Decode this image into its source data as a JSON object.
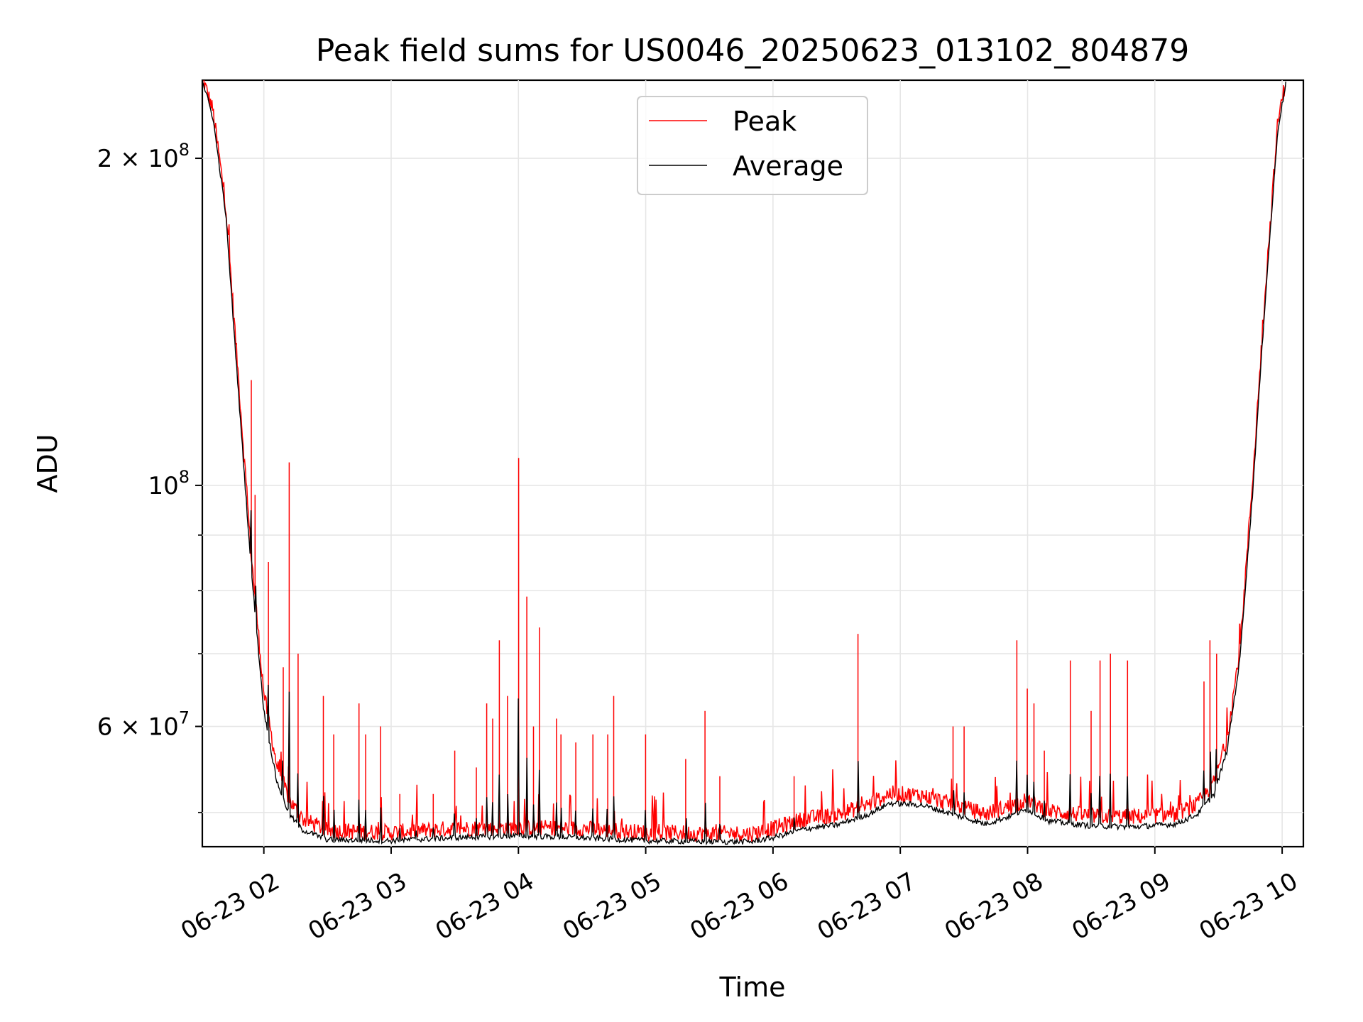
{
  "chart_data": {
    "type": "line",
    "title": "Peak field sums for US0046_20250623_013102_804879",
    "xlabel": "Time",
    "ylabel": "ADU",
    "x_scale": "time",
    "y_scale": "log",
    "xlim": [
      "2025-06-23 01:31",
      "2025-06-23 10:10"
    ],
    "ylim": [
      46500000,
      236000000
    ],
    "x_ticks": [
      {
        "value": "2025-06-23 02:00",
        "label": "06-23 02"
      },
      {
        "value": "2025-06-23 03:00",
        "label": "06-23 03"
      },
      {
        "value": "2025-06-23 04:00",
        "label": "06-23 04"
      },
      {
        "value": "2025-06-23 05:00",
        "label": "06-23 05"
      },
      {
        "value": "2025-06-23 06:00",
        "label": "06-23 06"
      },
      {
        "value": "2025-06-23 07:00",
        "label": "06-23 07"
      },
      {
        "value": "2025-06-23 08:00",
        "label": "06-23 08"
      },
      {
        "value": "2025-06-23 09:00",
        "label": "06-23 09"
      },
      {
        "value": "2025-06-23 10:00",
        "label": "06-23 10"
      }
    ],
    "y_major_ticks": [
      {
        "value": 200000000,
        "mantissa": "2",
        "exponent": "8"
      },
      {
        "value": 100000000,
        "mantissa": "",
        "exponent": "8"
      },
      {
        "value": 60000000,
        "mantissa": "6",
        "exponent": "7"
      }
    ],
    "y_minor_ticks": [
      50000000,
      70000000,
      80000000,
      90000000
    ],
    "grid": true,
    "legend": {
      "position": "top-center"
    },
    "series": [
      {
        "name": "Peak",
        "color": "#ff0000",
        "baseline": [
          [
            "2025-06-23 01:31",
            236000000
          ],
          [
            "2025-06-23 01:36",
            220000000
          ],
          [
            "2025-06-23 01:42",
            180000000
          ],
          [
            "2025-06-23 01:48",
            125000000
          ],
          [
            "2025-06-23 01:54",
            86000000
          ],
          [
            "2025-06-23 02:00",
            64000000
          ],
          [
            "2025-06-23 02:06",
            55000000
          ],
          [
            "2025-06-23 02:12",
            51000000
          ],
          [
            "2025-06-23 02:18",
            49000000
          ],
          [
            "2025-06-23 02:30",
            47800000
          ],
          [
            "2025-06-23 03:00",
            47600000
          ],
          [
            "2025-06-23 03:30",
            48000000
          ],
          [
            "2025-06-23 04:00",
            48100000
          ],
          [
            "2025-06-23 04:30",
            48000000
          ],
          [
            "2025-06-23 05:00",
            47600000
          ],
          [
            "2025-06-23 05:30",
            47500000
          ],
          [
            "2025-06-23 05:50",
            47500000
          ],
          [
            "2025-06-23 06:00",
            48000000
          ],
          [
            "2025-06-23 06:15",
            49000000
          ],
          [
            "2025-06-23 06:30",
            49400000
          ],
          [
            "2025-06-23 06:45",
            50500000
          ],
          [
            "2025-06-23 06:55",
            51700000
          ],
          [
            "2025-06-23 07:10",
            51500000
          ],
          [
            "2025-06-23 07:25",
            50500000
          ],
          [
            "2025-06-23 07:40",
            49500000
          ],
          [
            "2025-06-23 07:50",
            50200000
          ],
          [
            "2025-06-23 08:00",
            51000000
          ],
          [
            "2025-06-23 08:10",
            49800000
          ],
          [
            "2025-06-23 08:30",
            49300000
          ],
          [
            "2025-06-23 08:50",
            49200000
          ],
          [
            "2025-06-23 09:10",
            49500000
          ],
          [
            "2025-06-23 09:20",
            50500000
          ],
          [
            "2025-06-23 09:28",
            53000000
          ],
          [
            "2025-06-23 09:34",
            58000000
          ],
          [
            "2025-06-23 09:40",
            70000000
          ],
          [
            "2025-06-23 09:46",
            100000000
          ],
          [
            "2025-06-23 09:52",
            150000000
          ],
          [
            "2025-06-23 09:58",
            215000000
          ],
          [
            "2025-06-23 10:02",
            236000000
          ]
        ],
        "spikes": [
          [
            "2025-06-23 01:54",
            125000000
          ],
          [
            "2025-06-23 01:56",
            98000000
          ],
          [
            "2025-06-23 02:02",
            85000000
          ],
          [
            "2025-06-23 02:09",
            68000000
          ],
          [
            "2025-06-23 02:12",
            105000000
          ],
          [
            "2025-06-23 02:16",
            70000000
          ],
          [
            "2025-06-23 02:28",
            64000000
          ],
          [
            "2025-06-23 02:33",
            59000000
          ],
          [
            "2025-06-23 02:45",
            63000000
          ],
          [
            "2025-06-23 02:48",
            59000000
          ],
          [
            "2025-06-23 02:55",
            60000000
          ],
          [
            "2025-06-23 03:04",
            52000000
          ],
          [
            "2025-06-23 03:12",
            51000000
          ],
          [
            "2025-06-23 03:20",
            52000000
          ],
          [
            "2025-06-23 03:30",
            57000000
          ],
          [
            "2025-06-23 03:40",
            55000000
          ],
          [
            "2025-06-23 03:45",
            63000000
          ],
          [
            "2025-06-23 03:48",
            61000000
          ],
          [
            "2025-06-23 03:51",
            72000000
          ],
          [
            "2025-06-23 03:55",
            64000000
          ],
          [
            "2025-06-23 04:00",
            106000000
          ],
          [
            "2025-06-23 04:04",
            79000000
          ],
          [
            "2025-06-23 04:07",
            60000000
          ],
          [
            "2025-06-23 04:10",
            74000000
          ],
          [
            "2025-06-23 04:18",
            61000000
          ],
          [
            "2025-06-23 04:20",
            59000000
          ],
          [
            "2025-06-23 04:27",
            58000000
          ],
          [
            "2025-06-23 04:35",
            59000000
          ],
          [
            "2025-06-23 04:42",
            59000000
          ],
          [
            "2025-06-23 04:45",
            64000000
          ],
          [
            "2025-06-23 05:00",
            59000000
          ],
          [
            "2025-06-23 05:19",
            56000000
          ],
          [
            "2025-06-23 05:28",
            62000000
          ],
          [
            "2025-06-23 05:35",
            54000000
          ],
          [
            "2025-06-23 06:10",
            54000000
          ],
          [
            "2025-06-23 06:40",
            73000000
          ],
          [
            "2025-06-23 07:25",
            60000000
          ],
          [
            "2025-06-23 07:30",
            60000000
          ],
          [
            "2025-06-23 07:55",
            72000000
          ],
          [
            "2025-06-23 08:00",
            65000000
          ],
          [
            "2025-06-23 08:03",
            63000000
          ],
          [
            "2025-06-23 08:08",
            57000000
          ],
          [
            "2025-06-23 08:20",
            69000000
          ],
          [
            "2025-06-23 08:30",
            62000000
          ],
          [
            "2025-06-23 08:34",
            69000000
          ],
          [
            "2025-06-23 08:39",
            70000000
          ],
          [
            "2025-06-23 08:47",
            69000000
          ],
          [
            "2025-06-23 09:23",
            66000000
          ],
          [
            "2025-06-23 09:26",
            72000000
          ],
          [
            "2025-06-23 09:29",
            70000000
          ]
        ]
      },
      {
        "name": "Average",
        "color": "#000000",
        "values": [
          [
            "2025-06-23 01:31",
            236000000
          ],
          [
            "2025-06-23 01:36",
            218000000
          ],
          [
            "2025-06-23 01:42",
            178000000
          ],
          [
            "2025-06-23 01:48",
            122000000
          ],
          [
            "2025-06-23 01:54",
            84000000
          ],
          [
            "2025-06-23 02:00",
            62000000
          ],
          [
            "2025-06-23 02:06",
            53500000
          ],
          [
            "2025-06-23 02:12",
            49800000
          ],
          [
            "2025-06-23 02:18",
            48200000
          ],
          [
            "2025-06-23 02:30",
            47200000
          ],
          [
            "2025-06-23 03:00",
            47100000
          ],
          [
            "2025-06-23 03:30",
            47400000
          ],
          [
            "2025-06-23 04:00",
            47600000
          ],
          [
            "2025-06-23 04:30",
            47400000
          ],
          [
            "2025-06-23 05:00",
            47100000
          ],
          [
            "2025-06-23 05:30",
            47000000
          ],
          [
            "2025-06-23 05:50",
            47000000
          ],
          [
            "2025-06-23 06:00",
            47400000
          ],
          [
            "2025-06-23 06:15",
            48300000
          ],
          [
            "2025-06-23 06:30",
            48700000
          ],
          [
            "2025-06-23 06:45",
            49800000
          ],
          [
            "2025-06-23 06:55",
            51000000
          ],
          [
            "2025-06-23 07:10",
            50800000
          ],
          [
            "2025-06-23 07:25",
            49800000
          ],
          [
            "2025-06-23 07:40",
            48800000
          ],
          [
            "2025-06-23 07:50",
            49500000
          ],
          [
            "2025-06-23 08:00",
            50300000
          ],
          [
            "2025-06-23 08:10",
            49100000
          ],
          [
            "2025-06-23 08:30",
            48600000
          ],
          [
            "2025-06-23 08:50",
            48500000
          ],
          [
            "2025-06-23 09:10",
            48800000
          ],
          [
            "2025-06-23 09:20",
            49800000
          ],
          [
            "2025-06-23 09:28",
            52000000
          ],
          [
            "2025-06-23 09:34",
            57000000
          ],
          [
            "2025-06-23 09:40",
            69000000
          ],
          [
            "2025-06-23 09:46",
            98000000
          ],
          [
            "2025-06-23 09:52",
            148000000
          ],
          [
            "2025-06-23 09:58",
            213000000
          ],
          [
            "2025-06-23 10:02",
            236000000
          ]
        ]
      }
    ]
  }
}
